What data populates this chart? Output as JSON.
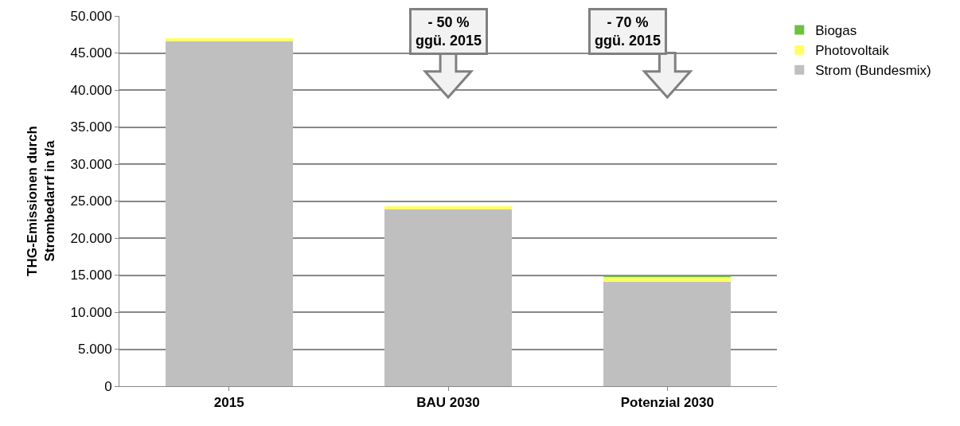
{
  "chart_data": {
    "type": "bar",
    "stacked": true,
    "ylabel": "THG-Emissionen durch\nStrombedarrf in t/a",
    "categories": [
      "2015",
      "BAU 2030",
      "Potenzial 2030"
    ],
    "series": [
      {
        "name": "Strom (Bundesmix)",
        "color": "#bfbfbf",
        "values": [
          46600,
          23900,
          14100
        ]
      },
      {
        "name": "Photovoltaik",
        "color": "#ffff66",
        "values": [
          400,
          400,
          700
        ]
      },
      {
        "name": "Biogas",
        "color": "#70c040",
        "values": [
          0,
          0,
          100
        ]
      }
    ],
    "ylim": [
      0,
      50000
    ],
    "yticks": [
      0,
      {
        "value": 5000,
        "label": "5.000"
      },
      {
        "value": 10000,
        "label": "10.000"
      },
      {
        "value": 15000,
        "label": "15.000"
      },
      {
        "value": 20000,
        "label": "20.000"
      },
      {
        "value": 25000,
        "label": "25.000"
      },
      {
        "value": 30000,
        "label": "30.000"
      },
      {
        "value": 35000,
        "label": "35.000"
      },
      {
        "value": 40000,
        "label": "40.000"
      },
      {
        "value": 45000,
        "label": "45.000"
      },
      {
        "value": 50000,
        "label": "50.000"
      }
    ],
    "grid": "y",
    "legend": "top right",
    "annotations": [
      "- 50 %\nggü. 2015",
      "- 70 %\nggü. 2015"
    ]
  }
}
